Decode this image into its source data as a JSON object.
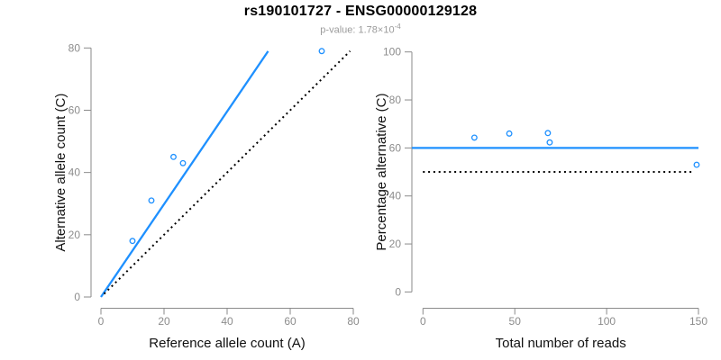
{
  "page": {
    "title": "rs190101727 - ENSG00000129128",
    "subtitle_prefix": "p-value: 1.78×10",
    "subtitle_exponent": "-4"
  },
  "colors": {
    "accent_blue": "#1E90FF",
    "axis_gray": "#8a8a8a",
    "tick_label_gray": "#8c8c8c",
    "subtitle_gray": "#9b9b9b",
    "line_black": "#000000"
  },
  "chart_data": [
    {
      "type": "scatter",
      "panel": "left",
      "xlabel": "Reference allele count (A)",
      "ylabel": "Alternative allele count (C)",
      "xlim": [
        0,
        80
      ],
      "ylim": [
        0,
        80
      ],
      "xticks": [
        0,
        20,
        40,
        60,
        80
      ],
      "yticks": [
        0,
        20,
        40,
        60,
        80
      ],
      "grid": false,
      "legend": null,
      "points": [
        [
          10,
          18
        ],
        [
          16,
          31
        ],
        [
          23,
          45
        ],
        [
          26,
          43
        ],
        [
          70,
          79
        ]
      ],
      "lines": [
        {
          "name": "fitted-line",
          "slope": 1.49,
          "intercept": 0,
          "x_from": 0,
          "x_to": 53,
          "style": "solid",
          "color": "#1E90FF"
        },
        {
          "name": "identity-line",
          "slope": 1,
          "intercept": 0,
          "x_from": 1,
          "x_to": 79,
          "style": "dotted",
          "color": "#000000"
        }
      ]
    },
    {
      "type": "scatter",
      "panel": "right",
      "xlabel": "Total number of reads",
      "ylabel": "Percentage alternative (C)",
      "xlim": [
        0,
        150
      ],
      "ylim": [
        0,
        100
      ],
      "xticks": [
        0,
        50,
        100,
        150
      ],
      "yticks": [
        0,
        20,
        40,
        60,
        80,
        100
      ],
      "grid": false,
      "legend": null,
      "points": [
        [
          28,
          64.3
        ],
        [
          47,
          66.0
        ],
        [
          68,
          66.2
        ],
        [
          69,
          62.3
        ],
        [
          149,
          53.0
        ]
      ],
      "lines": [
        {
          "name": "fitted-line",
          "slope": 0,
          "intercept": 60,
          "x_from": -6,
          "x_to": 150,
          "style": "solid",
          "color": "#1E90FF"
        },
        {
          "name": "null-line",
          "slope": 0,
          "intercept": 50,
          "x_from": 0,
          "x_to": 147,
          "style": "dotted",
          "color": "#000000"
        }
      ]
    }
  ]
}
